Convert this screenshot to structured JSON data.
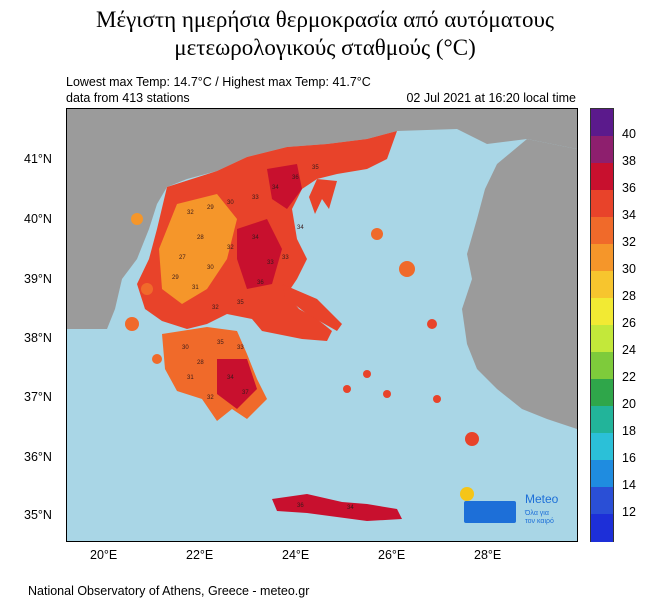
{
  "title": {
    "line1": "Μέγιστη ημερήσια θερμοκρασία από αυτόματους",
    "line2": "μετεωρολογικούς σταθμούς (°C)"
  },
  "info": {
    "temp_range": "Lowest max Temp: 14.7°C / Highest max Temp: 41.7°C",
    "stations": "data from 413 stations",
    "datetime": "02 Jul 2021 at 16:20 local time"
  },
  "axes": {
    "lat_labels": [
      "41°N",
      "40°N",
      "39°N",
      "38°N",
      "37°N",
      "36°N",
      "35°N"
    ],
    "lon_labels": [
      "20°E",
      "22°E",
      "24°E",
      "26°E",
      "28°E"
    ]
  },
  "colorbar": {
    "labels": [
      "40",
      "38",
      "36",
      "34",
      "32",
      "30",
      "28",
      "26",
      "24",
      "22",
      "20",
      "18",
      "16",
      "14",
      "12"
    ],
    "colors": [
      "#5b1a8c",
      "#8e1f6e",
      "#c8102e",
      "#e8432a",
      "#f06a2a",
      "#f5962a",
      "#f7c52e",
      "#f2ea33",
      "#c3e83a",
      "#7ecb3b",
      "#2fa64a",
      "#22b49a",
      "#2bc0d8",
      "#1f8ce0",
      "#2a4fd6",
      "#1d2fd8"
    ]
  },
  "logo": {
    "name": "Meteo",
    "tagline_1": "Όλα για",
    "tagline_2": "τον καιρό"
  },
  "station_values": [
    "32",
    "29",
    "30",
    "33",
    "34",
    "36",
    "35",
    "28",
    "27",
    "30",
    "32",
    "34",
    "33",
    "31",
    "29",
    "32",
    "35",
    "36",
    "33",
    "34",
    "30",
    "28",
    "35",
    "33",
    "31",
    "34",
    "32",
    "37",
    "36",
    "34"
  ],
  "footer": "National Observatory of Athens, Greece - meteo.gr",
  "colors": {
    "sea": "#a9d6e6",
    "land_other": "#9b9b9b",
    "hot": "#e8432a",
    "very_hot": "#c8102e",
    "warm": "#f5962a",
    "logo_blue": "#1d6fd8",
    "sun": "#f5c518"
  }
}
